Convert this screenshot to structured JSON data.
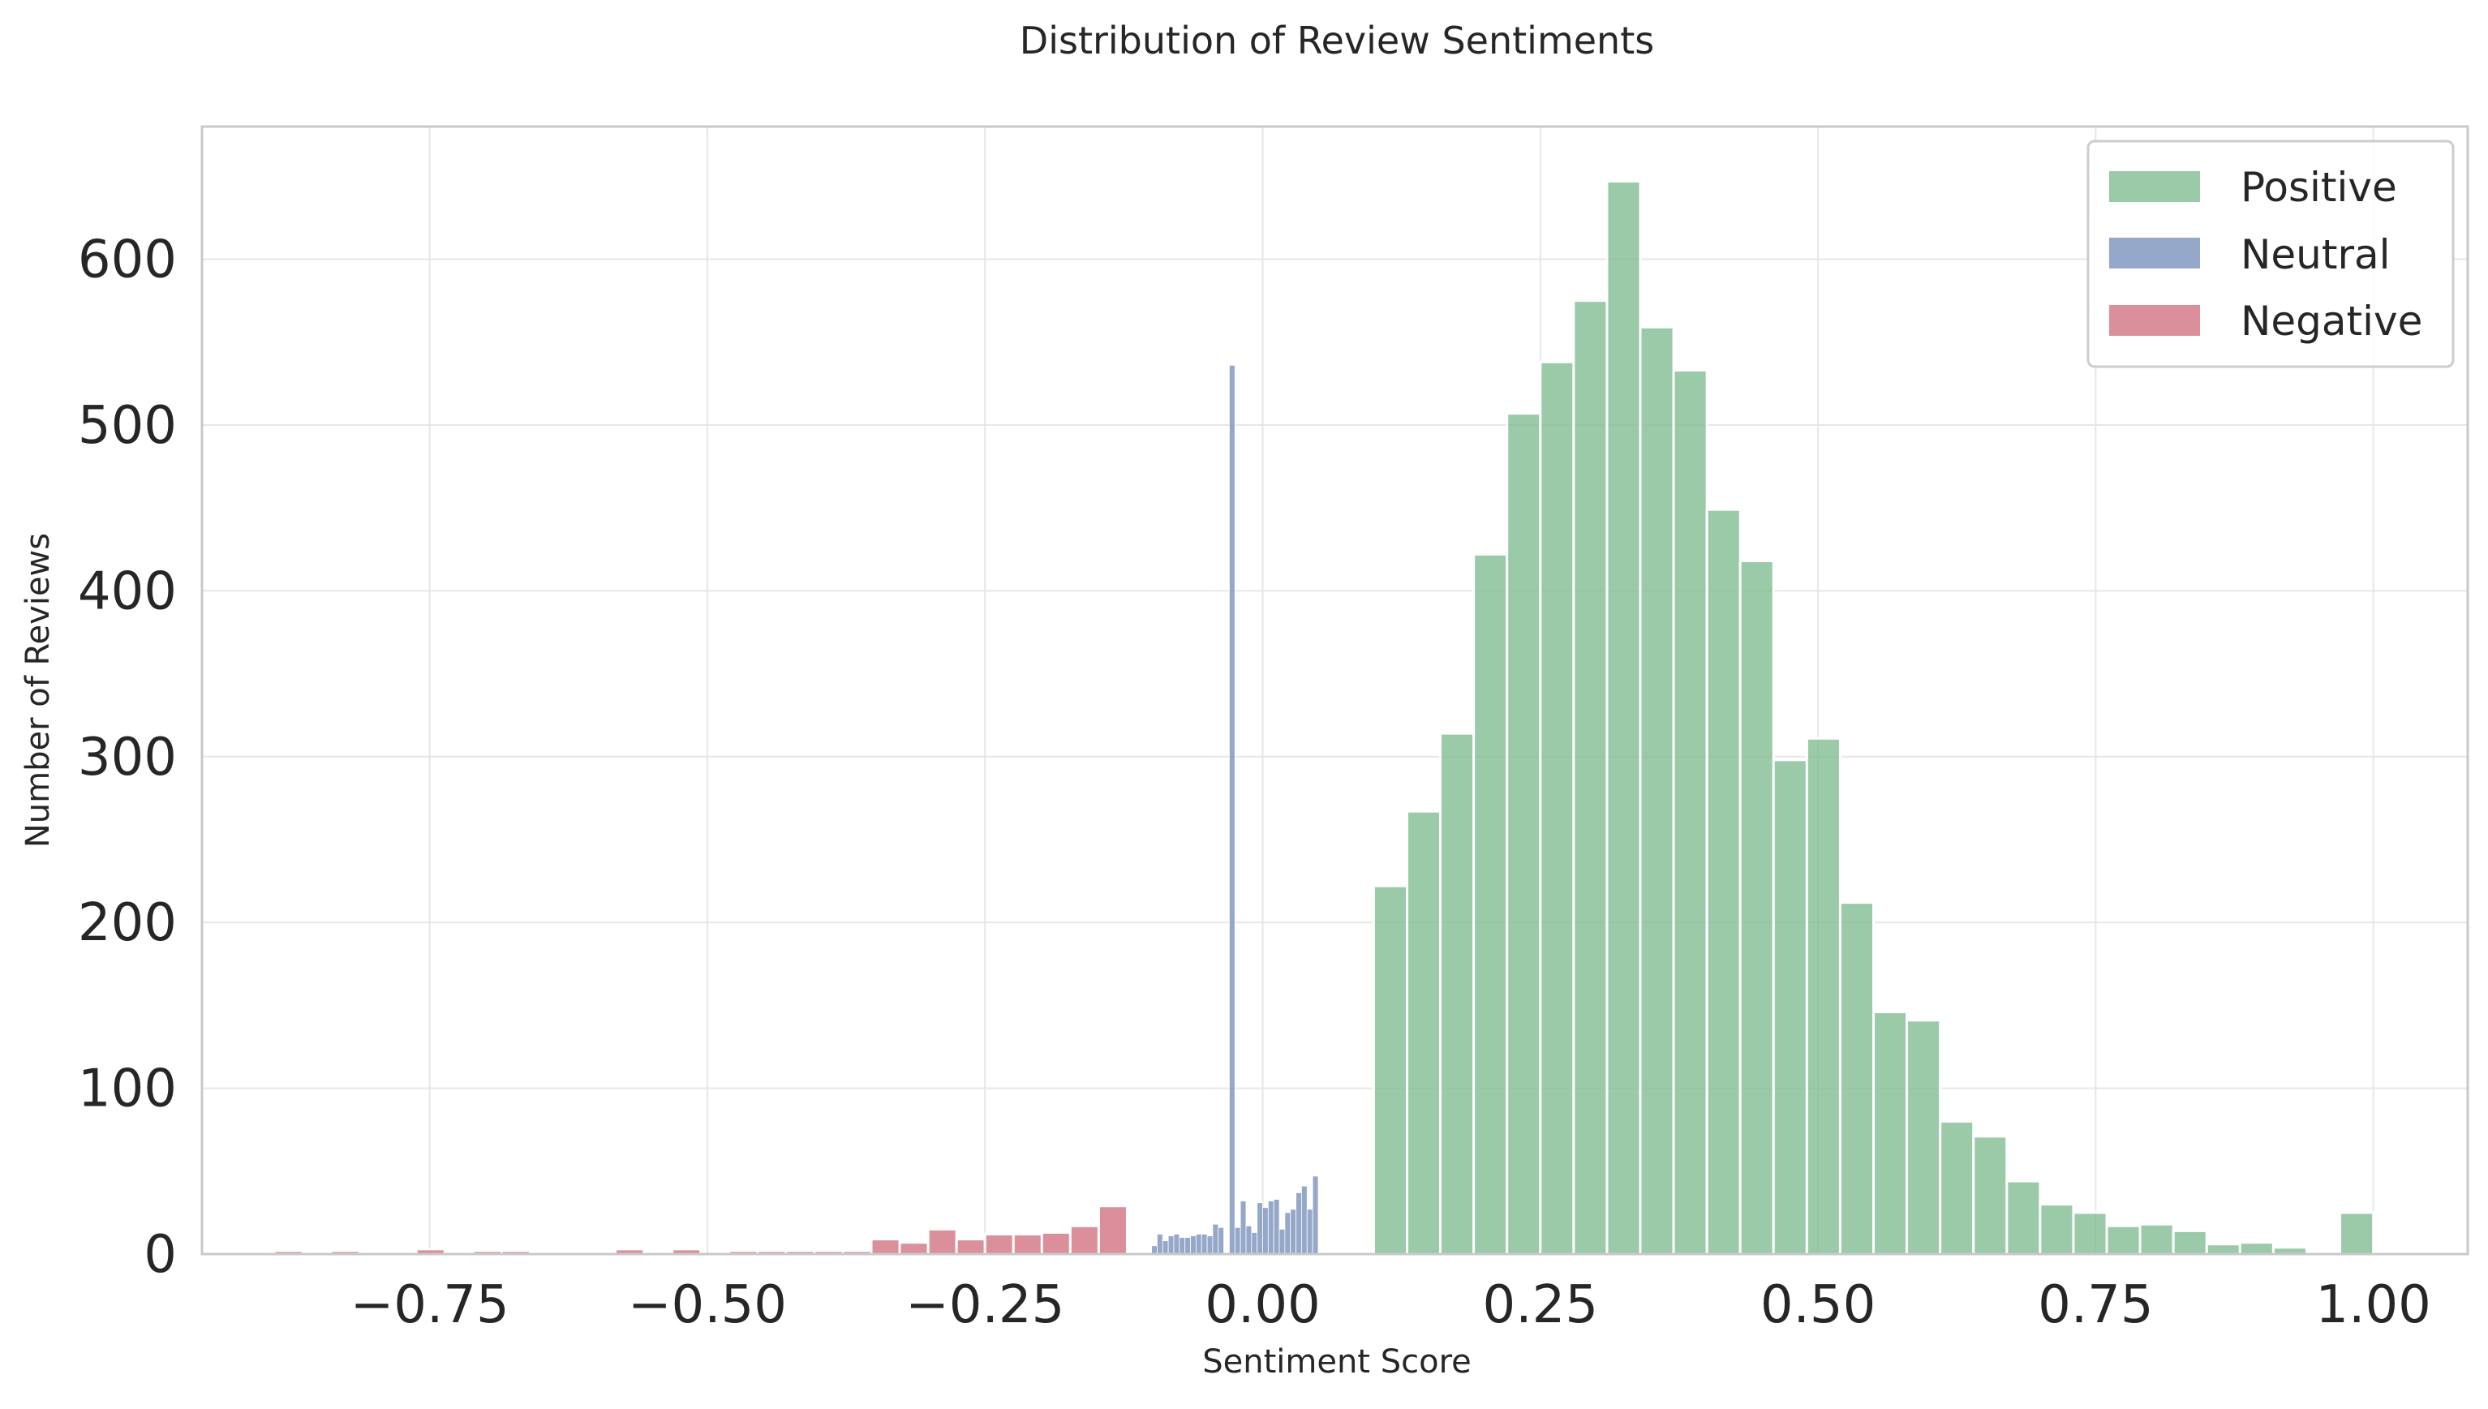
{
  "colors": {
    "positive": "#7fbb8f",
    "neutral": "#7790bb",
    "negative": "#d16f7f",
    "grid": "#e6e6e6",
    "frame": "#c9c9c9",
    "text": "#262626"
  },
  "chart_data": {
    "type": "bar",
    "title": "Distribution of Review Sentiments",
    "xlabel": "Sentiment Score",
    "ylabel": "Number of Reviews",
    "xlim": [
      -0.955,
      1.085
    ],
    "ylim": [
      0,
      680
    ],
    "x_ticks": [
      -0.75,
      -0.5,
      -0.25,
      0.0,
      0.25,
      0.5,
      0.75,
      1.0
    ],
    "x_tick_labels": [
      "−0.75",
      "−0.50",
      "−0.25",
      "0.00",
      "0.25",
      "0.50",
      "0.75",
      "1.00"
    ],
    "y_ticks": [
      0,
      100,
      200,
      300,
      400,
      500,
      600
    ],
    "y_tick_labels": [
      "0",
      "100",
      "200",
      "300",
      "400",
      "500",
      "600"
    ],
    "grid": true,
    "legend_position": "top-right",
    "series": [
      {
        "name": "Positive",
        "color_key": "positive",
        "bin_start": 0.1,
        "bin_width": 0.03,
        "values": [
          222,
          267,
          314,
          422,
          507,
          538,
          575,
          647,
          559,
          533,
          449,
          418,
          298,
          311,
          212,
          146,
          141,
          80,
          71,
          44,
          30,
          25,
          17,
          18,
          14,
          6,
          7,
          4,
          0,
          25
        ]
      },
      {
        "name": "Neutral",
        "color_key": "neutral",
        "bin_start": -0.1,
        "bin_width": 0.005,
        "values": [
          5,
          12,
          8,
          11,
          12,
          10,
          10,
          11,
          12,
          12,
          11,
          18,
          16,
          0,
          536,
          16,
          32,
          17,
          13,
          31,
          28,
          32,
          33,
          15,
          25,
          27,
          37,
          41,
          27,
          47
        ]
      },
      {
        "name": "Negative",
        "color_key": "negative",
        "bin_start": -0.89,
        "bin_width": 0.0256,
        "values": [
          2,
          0,
          2,
          0,
          0,
          3,
          0,
          2,
          2,
          0,
          0,
          0,
          3,
          0,
          3,
          0,
          2,
          2,
          2,
          2,
          2,
          9,
          7,
          15,
          9,
          12,
          12,
          13,
          17,
          29
        ]
      }
    ]
  }
}
